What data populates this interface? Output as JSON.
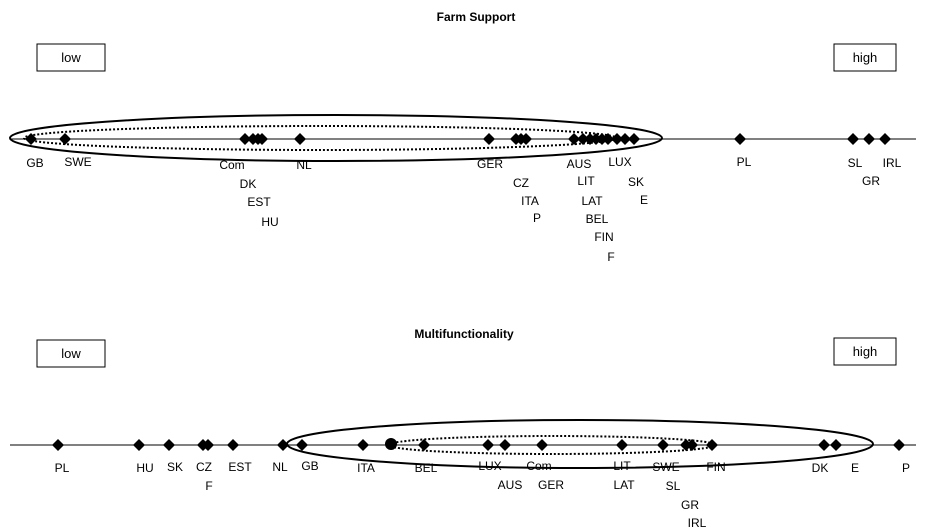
{
  "panels": [
    {
      "title": "Farm Support",
      "low_label": "low",
      "high_label": "high",
      "markers": [
        "GB",
        "SWE",
        "Com",
        "DK",
        "EST",
        "HU",
        "NL",
        "GER",
        "CZ",
        "ITA",
        "P",
        "AUS",
        "LIT",
        "LAT",
        "BEL",
        "FIN",
        "F",
        "LUX",
        "SK",
        "E",
        "PL",
        "SL",
        "GR",
        "IRL"
      ]
    },
    {
      "title": "Multifunctionality",
      "low_label": "low",
      "high_label": "high",
      "markers": [
        "PL",
        "HU",
        "SK",
        "CZ",
        "F",
        "EST",
        "NL",
        "GB",
        "ITA",
        "BEL",
        "LUX",
        "AUS",
        "Com",
        "GER",
        "LIT",
        "LAT",
        "SWE",
        "SL",
        "GR",
        "IRL",
        "FIN",
        "DK",
        "E",
        "P"
      ]
    }
  ]
}
